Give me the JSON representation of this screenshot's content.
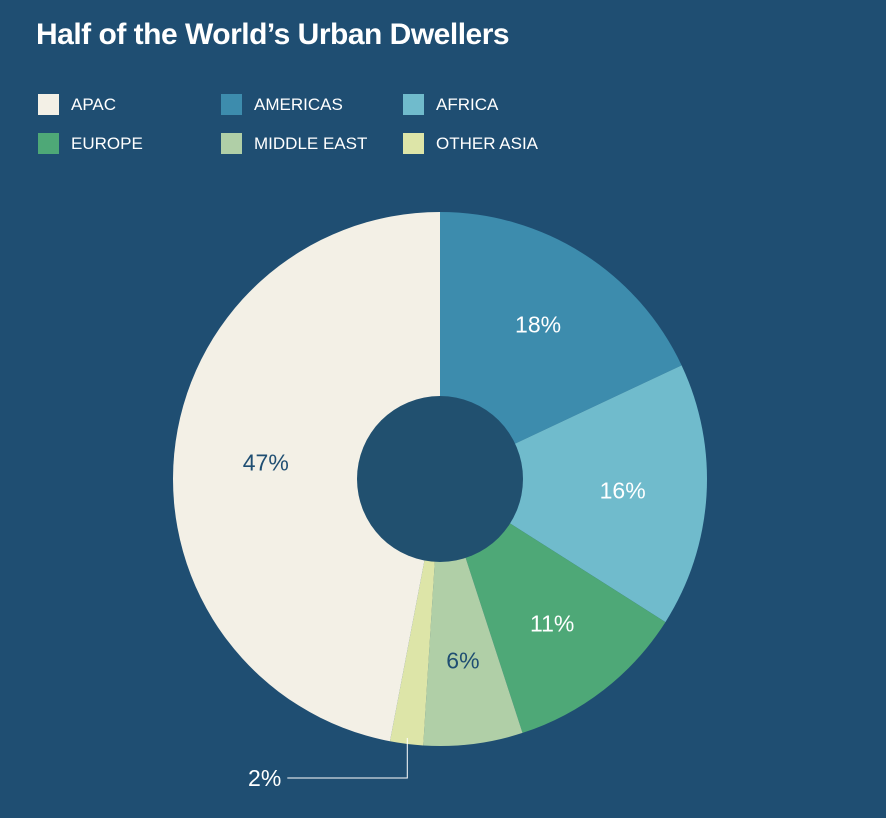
{
  "chart_data": {
    "type": "pie",
    "title": "Half of the World’s Urban Dwellers",
    "legend_position": "top-left",
    "slices": [
      {
        "name": "AMERICAS",
        "value": 18,
        "label": "18%",
        "color": "#3d8cad",
        "label_color": "#ffffff"
      },
      {
        "name": "AFRICA",
        "value": 16,
        "label": "16%",
        "color": "#70bbcc",
        "label_color": "#ffffff"
      },
      {
        "name": "EUROPE",
        "value": 11,
        "label": "11%",
        "color": "#4ea877",
        "label_color": "#ffffff"
      },
      {
        "name": "MIDDLE EAST",
        "value": 6,
        "label": "6%",
        "color": "#b0cfa7",
        "label_color": "#1f4e72"
      },
      {
        "name": "OTHER ASIA",
        "value": 2,
        "label": "2%",
        "color": "#dde5a8",
        "label_color": "#ffffff"
      },
      {
        "name": "APAC",
        "value": 47,
        "label": "47%",
        "color": "#f3f0e6",
        "label_color": "#1f4e72"
      }
    ],
    "legend_order": [
      "APAC",
      "AMERICAS",
      "AFRICA",
      "EUROPE",
      "MIDDLE EAST",
      "OTHER ASIA"
    ]
  },
  "colors": {
    "background": "#1f4e72",
    "donut_hole": "#21506f",
    "text": "#ffffff"
  }
}
